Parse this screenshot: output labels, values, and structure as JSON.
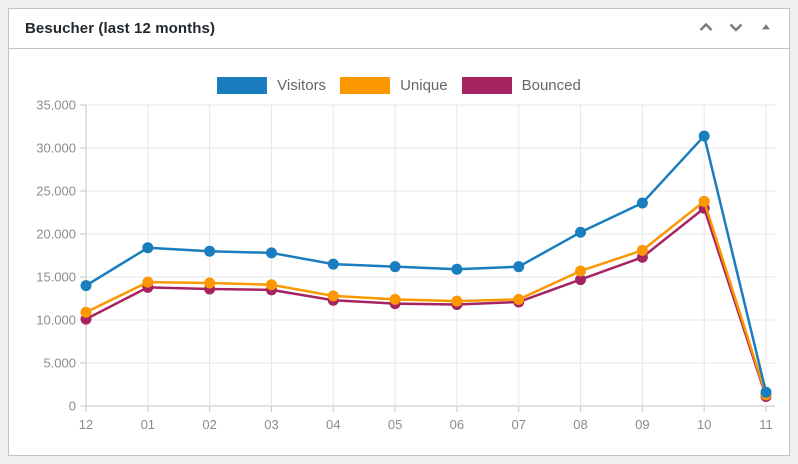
{
  "widget": {
    "title": "Besucher (last 12 months)",
    "controls": {
      "move_up": "Move up",
      "move_down": "Move down",
      "toggle": "Toggle panel"
    }
  },
  "chart_data": {
    "type": "line",
    "title": "Besucher (last 12 months)",
    "categories": [
      "12",
      "01",
      "02",
      "03",
      "04",
      "05",
      "06",
      "07",
      "08",
      "09",
      "10",
      "11"
    ],
    "series": [
      {
        "name": "Visitors",
        "color": "#1a7dbe",
        "values": [
          14000,
          18400,
          18000,
          17800,
          16500,
          16200,
          15900,
          16200,
          20200,
          23600,
          31400,
          1600
        ]
      },
      {
        "name": "Unique",
        "color": "#fb9800",
        "values": [
          10900,
          14400,
          14300,
          14100,
          12800,
          12400,
          12200,
          12400,
          15700,
          18100,
          23800,
          1300
        ]
      },
      {
        "name": "Bounced",
        "color": "#a62361",
        "values": [
          10100,
          13800,
          13600,
          13500,
          12300,
          11900,
          11800,
          12100,
          14700,
          17300,
          23000,
          1100
        ]
      }
    ],
    "ylim": [
      0,
      35000
    ],
    "y_tick_step": 5000,
    "y_tick_labels": [
      "0",
      "5.000",
      "10.000",
      "15.000",
      "20.000",
      "25.000",
      "30.000",
      "35.000"
    ],
    "grid": true,
    "legend_position": "top",
    "xlabel": "",
    "ylabel": ""
  },
  "ui": {
    "background": "#f0f0f1",
    "panel_border": "#c3c4c7",
    "title_color": "#23282d",
    "grid_color": "#e7e7e7",
    "axis_line_color": "#c6c6c6",
    "axis_text_color": "#8c8c8c",
    "legend_text_color": "#666666",
    "control_icon_color": "#787c82"
  }
}
